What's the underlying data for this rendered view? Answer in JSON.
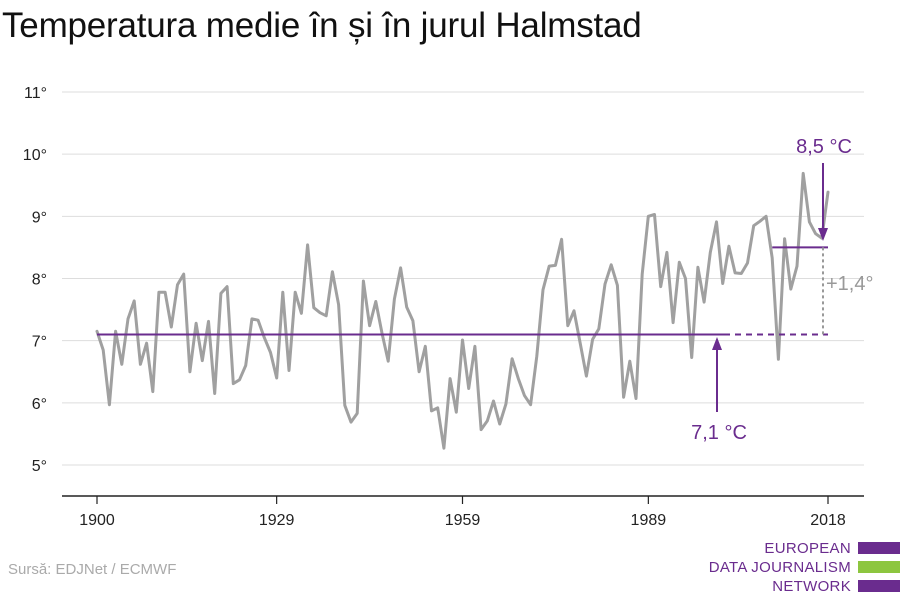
{
  "title": "Temperatura medie în și în jurul Halmstad",
  "source": "Sursă: EDJNet / ECMWF",
  "logo": {
    "line1": "EUROPEAN",
    "line2": "DATA JOURNALISM",
    "line3": "NETWORK",
    "colors": [
      "#6a2c8e",
      "#8dc63f",
      "#6a2c8e"
    ]
  },
  "colors": {
    "series": "#a0a0a0",
    "accent": "#6a2c8e",
    "diff": "#999999",
    "grid": "#dddddd",
    "axis": "#222222",
    "text": "#222222"
  },
  "chart_data": {
    "type": "line",
    "title": "Temperatura medie în și în jurul Halmstad",
    "xlabel": "",
    "ylabel": "",
    "xlim": [
      1900,
      2018
    ],
    "ylim": [
      5,
      11
    ],
    "x_ticks": [
      1900,
      1929,
      1959,
      1989,
      2018
    ],
    "y_ticks": [
      5,
      6,
      7,
      8,
      9,
      10,
      11
    ],
    "y_tick_labels": [
      "5°",
      "6°",
      "7°",
      "8°",
      "9°",
      "10°",
      "11°"
    ],
    "grid": true,
    "series": [
      {
        "x": [
          1900,
          1901,
          1902,
          1903,
          1904,
          1905,
          1906,
          1907,
          1908,
          1909,
          1910,
          1911,
          1912,
          1913,
          1914,
          1915,
          1916,
          1917,
          1918,
          1919,
          1920,
          1921,
          1922,
          1923,
          1924,
          1925,
          1926,
          1927,
          1928,
          1929,
          1930,
          1931,
          1932,
          1933,
          1934,
          1935,
          1936,
          1937,
          1938,
          1939,
          1940,
          1941,
          1942,
          1943,
          1944,
          1945,
          1946,
          1947,
          1948,
          1949,
          1950,
          1951,
          1952,
          1953,
          1954,
          1955,
          1956,
          1957,
          1958,
          1959,
          1960,
          1961,
          1962,
          1963,
          1964,
          1965,
          1966,
          1967,
          1968,
          1969,
          1970,
          1971,
          1972,
          1973,
          1974,
          1975,
          1976,
          1977,
          1978,
          1979,
          1980,
          1981,
          1982,
          1983,
          1984,
          1985,
          1986,
          1987,
          1988,
          1989,
          1990,
          1991,
          1992,
          1993,
          1994,
          1995,
          1996,
          1997,
          1998,
          1999,
          2000,
          2001,
          2002,
          2003,
          2004,
          2005,
          2006,
          2007,
          2008,
          2009,
          2010,
          2011,
          2012,
          2013,
          2014,
          2015,
          2016,
          2017,
          2018
        ],
        "values": [
          7.15,
          6.85,
          5.97,
          7.15,
          6.62,
          7.35,
          7.64,
          6.62,
          6.96,
          6.18,
          7.78,
          7.78,
          7.22,
          7.9,
          8.07,
          6.5,
          7.28,
          6.68,
          7.31,
          6.15,
          7.76,
          7.87,
          6.31,
          6.37,
          6.6,
          7.35,
          7.33,
          7.05,
          6.81,
          6.4,
          7.78,
          6.52,
          7.78,
          7.44,
          8.54,
          7.53,
          7.45,
          7.4,
          8.11,
          7.58,
          5.96,
          5.69,
          5.83,
          7.96,
          7.24,
          7.63,
          7.12,
          6.67,
          7.67,
          8.17,
          7.54,
          7.32,
          6.5,
          6.91,
          5.87,
          5.92,
          5.27,
          6.39,
          5.85,
          7.01,
          6.23,
          6.91,
          5.57,
          5.71,
          6.03,
          5.66,
          5.98,
          6.71,
          6.39,
          6.12,
          5.97,
          6.75,
          7.82,
          8.2,
          8.21,
          8.63,
          7.24,
          7.48,
          6.96,
          6.43,
          7.02,
          7.19,
          7.91,
          8.22,
          7.89,
          6.09,
          6.67,
          6.07,
          8.07,
          9.0,
          9.03,
          7.87,
          8.42,
          7.29,
          8.26,
          8.0,
          6.73,
          8.18,
          7.62,
          8.42,
          8.91,
          7.92,
          8.52,
          8.09,
          8.08,
          8.25,
          8.85,
          8.92,
          9.0,
          8.33,
          6.7,
          8.64,
          7.83,
          8.2,
          9.69,
          8.91,
          8.72,
          8.65,
          9.39
        ]
      }
    ],
    "annotations": {
      "baseline": {
        "value": 7.1,
        "label": "7,1 °C",
        "from": 1900,
        "to": 2018
      },
      "recent": {
        "value": 8.5,
        "label": "8,5 °C",
        "from": 2009,
        "to": 2018
      },
      "difference": {
        "label": "+1,4°"
      }
    }
  }
}
